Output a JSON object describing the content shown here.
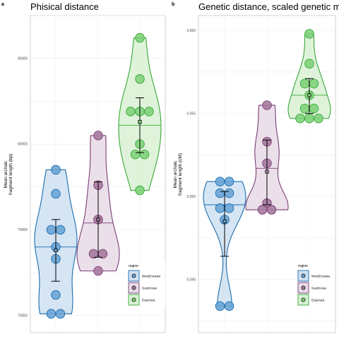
{
  "figure": {
    "panels": [
      {
        "letter": "a",
        "title": "Phisical distance"
      },
      {
        "letter": "b",
        "title": "Genetic distance, scaled genetic map"
      }
    ]
  },
  "chart_data": [
    {
      "type": "violin",
      "panel": "a",
      "title": "Phisical distance",
      "xlabel": "",
      "ylabel_lines": [
        "Mean archaic",
        "fragment length (bp)"
      ],
      "ylim": [
        69000,
        87500
      ],
      "yticks": [
        70000,
        75000,
        80000,
        85000
      ],
      "ytick_labels": [
        "70000",
        "75000",
        "80000",
        "85000"
      ],
      "grid": true,
      "legend": {
        "title": "region",
        "position": "bottom-right",
        "entries": [
          "WestEurasia",
          "SouthAsia",
          "EastAsia"
        ]
      },
      "series": [
        {
          "name": "WestEurasia",
          "color": "#1a6db0",
          "fill": "#cfe1f1",
          "point_fill": "#6aa5d6",
          "points": [
            78500,
            77100,
            75000,
            75000,
            74000,
            73300,
            71200,
            70100,
            70100
          ],
          "mean": 73800,
          "err": [
            72000,
            75600
          ],
          "median": 74000
        },
        {
          "name": "SouthAsia",
          "color": "#7b3f77",
          "fill": "#e7dbe6",
          "point_fill": "#a77a9f",
          "points": [
            80500,
            77600,
            75600,
            73600,
            73600,
            72600
          ],
          "mean": 75600,
          "err": [
            73400,
            77800
          ],
          "median": 75400
        },
        {
          "name": "EastAsia",
          "color": "#3aa83a",
          "fill": "#d8f1d4",
          "point_fill": "#7fd17a",
          "points": [
            86200,
            83800,
            81900,
            81900,
            81900,
            80000,
            79400,
            79400,
            77300
          ],
          "mean": 81300,
          "err": [
            79500,
            82700
          ],
          "median": 81100
        }
      ]
    },
    {
      "type": "violin",
      "panel": "b",
      "title": "Genetic distance, scaled genetic map",
      "xlabel": "",
      "ylabel_lines": [
        "Mean archaic",
        "fragment length (cM)"
      ],
      "ylim": [
        0.0418,
        0.0609
      ],
      "yticks": [
        0.045,
        0.05,
        0.055,
        0.06
      ],
      "ytick_labels": [
        "0.045",
        "0.050",
        "0.055",
        "0.060"
      ],
      "grid": true,
      "legend": {
        "title": "region",
        "position": "bottom-right",
        "entries": [
          "WestEurasia",
          "SouthAsia",
          "EastAsia"
        ]
      },
      "series": [
        {
          "name": "WestEurasia",
          "color": "#1a6db0",
          "fill": "#cfe1f1",
          "point_fill": "#6aa5d6",
          "points": [
            0.0509,
            0.0509,
            0.0502,
            0.0502,
            0.0493,
            0.0493,
            0.0486,
            0.0434,
            0.0434
          ],
          "mean": 0.0485,
          "err": [
            0.0464,
            0.0503
          ],
          "median": 0.0495
        },
        {
          "name": "SouthAsia",
          "color": "#7b3f77",
          "fill": "#e7dbe6",
          "point_fill": "#a77a9f",
          "points": [
            0.0555,
            0.0533,
            0.052,
            0.0496,
            0.0492,
            0.0492
          ],
          "mean": 0.0515,
          "err": [
            0.0495,
            0.0534
          ],
          "median": 0.0517
        },
        {
          "name": "EastAsia",
          "color": "#3aa83a",
          "fill": "#d8f1d4",
          "point_fill": "#7fd17a",
          "points": [
            0.0598,
            0.058,
            0.0568,
            0.0568,
            0.0561,
            0.0553,
            0.0553,
            0.0547,
            0.0547,
            0.0547
          ],
          "mean": 0.0561,
          "err": [
            0.055,
            0.0571
          ],
          "median": 0.0561
        }
      ]
    }
  ]
}
